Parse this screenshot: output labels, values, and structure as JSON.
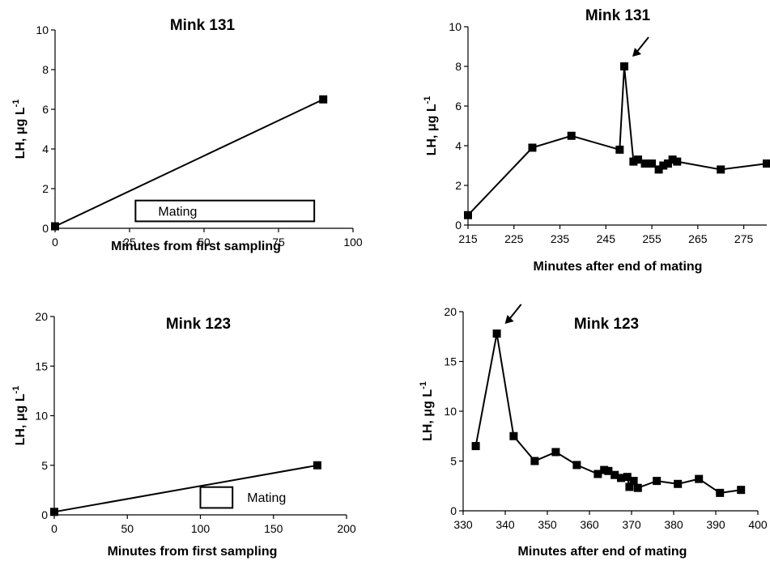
{
  "chart_data": [
    {
      "id": "p1",
      "type": "line",
      "title": "Mink 131",
      "xlabel": "Minutes from first sampling",
      "ylabel": "LH, μg L",
      "ylabel_sup": "-1",
      "xlim": [
        0,
        100
      ],
      "ylim": [
        0,
        10
      ],
      "xticks": [
        0,
        25,
        50,
        75,
        100
      ],
      "yticks": [
        0,
        2,
        4,
        6,
        8,
        10
      ],
      "series": [
        {
          "x": [
            0,
            90
          ],
          "y": [
            0.1,
            6.5
          ]
        }
      ],
      "annotations": [
        {
          "type": "box",
          "text": "Mating",
          "x0": 27,
          "x1": 87,
          "y0": 0.35,
          "y1": 1.4
        }
      ]
    },
    {
      "id": "p2",
      "type": "line",
      "title": "Mink 131",
      "xlabel": "Minutes after end of mating",
      "ylabel": "LH, μg L",
      "ylabel_sup": "-1",
      "xlim": [
        215,
        280
      ],
      "ylim": [
        0,
        10
      ],
      "xticks": [
        215,
        225,
        235,
        245,
        255,
        265,
        275
      ],
      "yticks": [
        0,
        2,
        4,
        6,
        8,
        10
      ],
      "series": [
        {
          "x": [
            215,
            229,
            237.5,
            248,
            249,
            251,
            252,
            253.5,
            255,
            256.5,
            257.5,
            258.5,
            259.5,
            260.5,
            270,
            280
          ],
          "y": [
            0.5,
            3.9,
            4.5,
            3.8,
            8.0,
            3.2,
            3.3,
            3.1,
            3.1,
            2.8,
            3.0,
            3.1,
            3.3,
            3.2,
            2.8,
            3.1
          ]
        }
      ],
      "annotations": [
        {
          "type": "arrow",
          "x": 249,
          "y": 8.0
        }
      ]
    },
    {
      "id": "p3",
      "type": "line",
      "title": "Mink 123",
      "xlabel": "Minutes from first sampling",
      "ylabel": "LH, μg L",
      "ylabel_sup": "-1",
      "xlim": [
        0,
        200
      ],
      "ylim": [
        0,
        20
      ],
      "xticks": [
        0,
        50,
        100,
        150,
        200
      ],
      "yticks": [
        0,
        5,
        10,
        15,
        20
      ],
      "series": [
        {
          "x": [
            0,
            180
          ],
          "y": [
            0.3,
            5.0
          ]
        }
      ],
      "annotations": [
        {
          "type": "box",
          "x0": 100,
          "x1": 122,
          "y0": 0.7,
          "y1": 2.8
        },
        {
          "type": "label",
          "text": "Mating",
          "x": 132,
          "y": 1.8
        }
      ]
    },
    {
      "id": "p4",
      "type": "line",
      "title": "Mink 123",
      "xlabel": "Minutes after end of mating",
      "ylabel": "LH, μg L",
      "ylabel_sup": "-1",
      "xlim": [
        330,
        400
      ],
      "ylim": [
        0,
        20
      ],
      "xticks": [
        330,
        340,
        350,
        360,
        370,
        380,
        390,
        400
      ],
      "yticks": [
        0,
        5,
        10,
        15,
        20
      ],
      "series": [
        {
          "x": [
            333,
            338,
            342,
            347,
            352,
            357,
            362,
            363.5,
            364.5,
            366,
            367.5,
            369,
            369.5,
            370.5,
            371.5,
            376,
            381,
            386,
            391,
            396
          ],
          "y": [
            6.5,
            17.8,
            7.5,
            5.0,
            5.9,
            4.6,
            3.7,
            4.1,
            4.0,
            3.6,
            3.3,
            3.4,
            2.4,
            3.0,
            2.3,
            3.0,
            2.7,
            3.2,
            1.8,
            2.1
          ]
        }
      ],
      "annotations": [
        {
          "type": "arrow",
          "x": 338,
          "y": 17.8
        }
      ]
    }
  ]
}
